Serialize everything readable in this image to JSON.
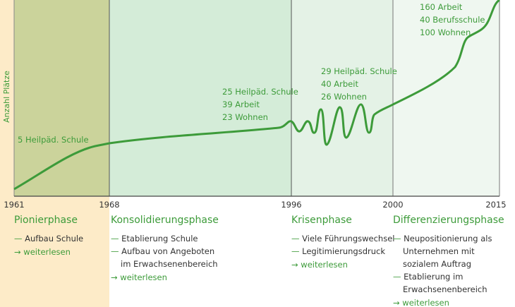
{
  "y_axis_label": "Anzahl Plätze",
  "annotations": [
    {
      "lines": [
        "5 Heilpäd. Schule"
      ]
    },
    {
      "lines": [
        "25 Heilpäd. Schule",
        "39 Arbeit",
        "23 Wohnen"
      ]
    },
    {
      "lines": [
        "29 Heilpäd. Schule",
        "40 Arbeit",
        "26 Wohnen"
      ]
    },
    {
      "lines": [
        "160 Arbeit",
        "40 Berufsschule",
        "100 Wohnen"
      ]
    }
  ],
  "years": [
    "1961",
    "1968",
    "1996",
    "2000",
    "2015"
  ],
  "phases": [
    {
      "title": "Pionierphase",
      "items": [
        [
          "Aufbau Schule"
        ]
      ],
      "link": "weiterlesen"
    },
    {
      "title": "Konsolidierungsphase",
      "items": [
        [
          "Etablierung Schule"
        ],
        [
          "Aufbau von Angeboten",
          "im Erwachsenenbereich"
        ]
      ],
      "link": "weiterlesen"
    },
    {
      "title": "Krisenphase",
      "items": [
        [
          "Viele Führungswechsel"
        ],
        [
          "Legitimierungsdruck"
        ]
      ],
      "link": "weiterlesen"
    },
    {
      "title": "Differenzierungsphase",
      "items": [
        [
          "Neupositionierung als",
          "Unternehmen mit",
          "sozialem Auftrag"
        ],
        [
          "Etablierung im",
          "Erwachsenenbereich"
        ]
      ],
      "link": "weiterlesen"
    }
  ]
}
